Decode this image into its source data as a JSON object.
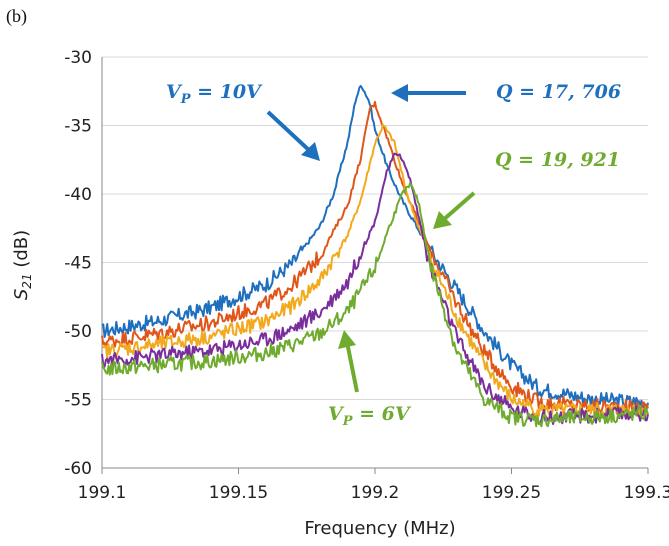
{
  "panel_label": "(b)",
  "colors": {
    "blue": "#1f6fbf",
    "orange": "#e0561a",
    "yellow": "#f2a91d",
    "purple": "#7a2e9c",
    "green": "#6fab2f",
    "grid": "#d9d9d9",
    "axis": "#888888"
  },
  "chart_data": {
    "type": "line",
    "title": "",
    "xlabel": "Frequency (MHz)",
    "ylabel": "S21 (dB)",
    "ylabel_base": "S",
    "ylabel_sub": "21",
    "ylabel_tail": " (dB)",
    "xlim": [
      199.1,
      199.3
    ],
    "ylim": [
      -60,
      -30
    ],
    "xticks": [
      199.1,
      199.15,
      199.2,
      199.25,
      199.3
    ],
    "xtick_labels": [
      "199.1",
      "199.15",
      "199.2",
      "199.25",
      "199.3"
    ],
    "yticks": [
      -60,
      -55,
      -50,
      -45,
      -40,
      -35,
      -30
    ],
    "ytick_labels": [
      "-60",
      "-55",
      "-50",
      "-45",
      "-40",
      "-35",
      "-30"
    ],
    "grid": true,
    "series": [
      {
        "color": "#1f6fbf",
        "x": [
          199.1,
          199.12,
          199.14,
          199.16,
          199.17,
          199.18,
          199.185,
          199.19,
          199.193,
          199.195,
          199.198,
          199.2,
          199.205,
          199.21,
          199.22,
          199.23,
          199.24,
          199.25,
          199.26,
          199.28,
          199.3
        ],
        "y": [
          -50.0,
          -49.3,
          -48.3,
          -46.6,
          -45.0,
          -42.3,
          -39.9,
          -36.2,
          -33.0,
          -32.0,
          -33.3,
          -35.3,
          -38.3,
          -40.5,
          -44.0,
          -47.0,
          -50.0,
          -52.5,
          -54.2,
          -55.0,
          -55.2
        ]
      },
      {
        "color": "#e0561a",
        "x": [
          199.1,
          199.12,
          199.14,
          199.16,
          199.17,
          199.18,
          199.19,
          199.195,
          199.198,
          199.2,
          199.204,
          199.21,
          199.22,
          199.23,
          199.24,
          199.25,
          199.26,
          199.28,
          199.3
        ],
        "y": [
          -50.8,
          -50.2,
          -49.4,
          -48.0,
          -46.6,
          -44.5,
          -40.8,
          -37.2,
          -33.8,
          -33.4,
          -35.6,
          -39.2,
          -44.0,
          -48.0,
          -51.5,
          -54.0,
          -55.2,
          -55.5,
          -55.6
        ]
      },
      {
        "color": "#f2a91d",
        "x": [
          199.1,
          199.12,
          199.14,
          199.16,
          199.17,
          199.18,
          199.19,
          199.195,
          199.2,
          199.203,
          199.207,
          199.212,
          199.22,
          199.23,
          199.24,
          199.25,
          199.26,
          199.28,
          199.3
        ],
        "y": [
          -51.5,
          -51.0,
          -50.4,
          -49.3,
          -48.1,
          -46.3,
          -43.0,
          -40.3,
          -36.3,
          -35.0,
          -36.2,
          -40.2,
          -44.6,
          -49.0,
          -52.5,
          -55.0,
          -55.8,
          -55.8,
          -55.8
        ]
      },
      {
        "color": "#7a2e9c",
        "x": [
          199.1,
          199.12,
          199.14,
          199.16,
          199.17,
          199.18,
          199.19,
          199.2,
          199.204,
          199.207,
          199.209,
          199.213,
          199.22,
          199.23,
          199.24,
          199.25,
          199.26,
          199.28,
          199.3
        ],
        "y": [
          -52.2,
          -51.8,
          -51.4,
          -50.6,
          -49.8,
          -48.6,
          -46.4,
          -42.0,
          -38.6,
          -37.2,
          -37.0,
          -39.0,
          -45.2,
          -50.5,
          -54.0,
          -55.7,
          -56.3,
          -56.2,
          -56.0
        ]
      },
      {
        "color": "#6fab2f",
        "x": [
          199.1,
          199.12,
          199.14,
          199.16,
          199.17,
          199.18,
          199.19,
          199.2,
          199.205,
          199.21,
          199.213,
          199.216,
          199.22,
          199.23,
          199.24,
          199.25,
          199.26,
          199.28,
          199.3
        ],
        "y": [
          -52.8,
          -52.5,
          -52.2,
          -51.6,
          -51.0,
          -50.2,
          -48.6,
          -45.4,
          -42.5,
          -40.0,
          -39.3,
          -40.6,
          -45.0,
          -51.5,
          -55.0,
          -56.3,
          -56.5,
          -56.3,
          -56.0
        ]
      }
    ],
    "annotations": [
      {
        "base": "V",
        "sub": "P",
        "tail": " = 10V",
        "color": "#1f6fbf"
      },
      {
        "base": "Q",
        "sub": "",
        "tail": " = 17, 706",
        "color": "#1f6fbf"
      },
      {
        "base": "Q",
        "sub": "",
        "tail": " = 19, 921",
        "color": "#6fab2f"
      },
      {
        "base": "V",
        "sub": "P",
        "tail": " = 6V",
        "color": "#6fab2f"
      }
    ]
  }
}
